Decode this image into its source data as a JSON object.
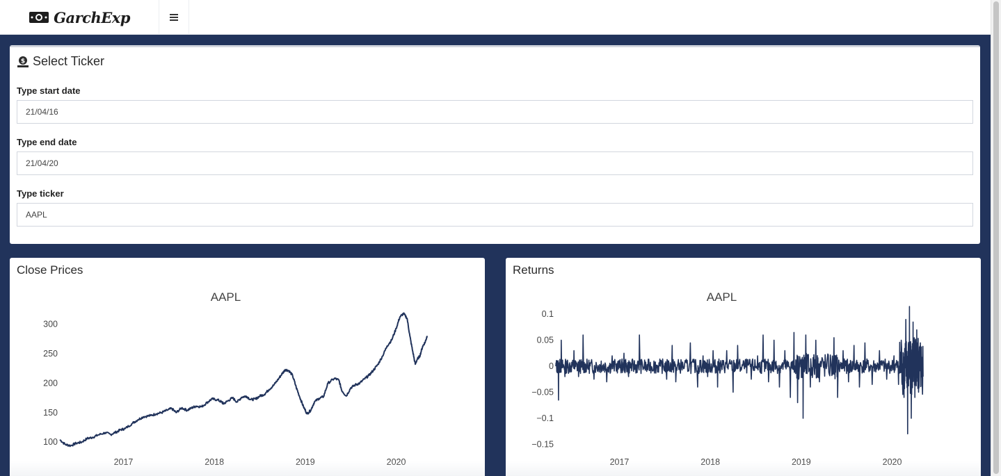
{
  "header": {
    "brand": "GarchExp",
    "logo_icon": "money-bill-icon",
    "menu_icon": "hamburger-menu-icon",
    "menu_glyph": "≡"
  },
  "ticker_box": {
    "icon": "money-check-dollar-icon",
    "title": "Select Ticker",
    "start_label": "Type start date",
    "start_value": "21/04/16",
    "end_label": "Type end date",
    "end_value": "21/04/20",
    "ticker_label": "Type ticker",
    "ticker_value": "AAPL"
  },
  "colors": {
    "frame": "#21335b",
    "line": "#21335b",
    "box_border": "#d2d6de"
  },
  "close_box": {
    "title": "Close Prices"
  },
  "returns_box": {
    "title": "Returns"
  },
  "chart_data": [
    {
      "type": "line",
      "title": "AAPL",
      "xlabel": "",
      "ylabel": "",
      "x_ticks": [
        "2017",
        "2018",
        "2019",
        "2020"
      ],
      "y_ticks": [
        "100",
        "150",
        "200",
        "250",
        "300"
      ],
      "ylim": [
        92,
        330
      ],
      "xlim": [
        2016.3,
        2020.34
      ],
      "grid": false,
      "series": [
        {
          "x": [
            2016.3,
            2016.36,
            2016.42,
            2016.48,
            2016.54,
            2016.6,
            2016.66,
            2016.72,
            2016.8,
            2016.86,
            2016.92,
            2016.97,
            2017.02,
            2017.1,
            2017.16,
            2017.22,
            2017.3,
            2017.36,
            2017.42,
            2017.48,
            2017.53,
            2017.58,
            2017.64,
            2017.7,
            2017.75,
            2017.8,
            2017.86,
            2017.92,
            2017.97,
            2018.03,
            2018.08,
            2018.1,
            2018.15,
            2018.2,
            2018.25,
            2018.3,
            2018.35,
            2018.4,
            2018.45,
            2018.5,
            2018.55,
            2018.6,
            2018.65,
            2018.7,
            2018.74,
            2018.78,
            2018.82,
            2018.86,
            2018.9,
            2018.94,
            2018.98,
            2019.02,
            2019.06,
            2019.1,
            2019.15,
            2019.2,
            2019.25,
            2019.32,
            2019.37,
            2019.4,
            2019.45,
            2019.5,
            2019.55,
            2019.6,
            2019.65,
            2019.7,
            2019.75,
            2019.8,
            2019.85,
            2019.9,
            2019.95,
            2020.0,
            2020.04,
            2020.08,
            2020.12,
            2020.15,
            2020.18,
            2020.21,
            2020.23,
            2020.26,
            2020.29,
            2020.32,
            2020.34
          ],
          "y": [
            104,
            96,
            94,
            98,
            100,
            106,
            108,
            112,
            116,
            113,
            117,
            121,
            123,
            132,
            138,
            143,
            145,
            148,
            150,
            154,
            157,
            150,
            158,
            154,
            158,
            161,
            160,
            167,
            173,
            172,
            168,
            165,
            170,
            175,
            168,
            176,
            178,
            172,
            173,
            178,
            181,
            189,
            196,
            206,
            215,
            223,
            221,
            213,
            193,
            176,
            160,
            148,
            154,
            168,
            174,
            177,
            200,
            208,
            205,
            188,
            178,
            192,
            197,
            200,
            207,
            213,
            222,
            232,
            246,
            263,
            273,
            293,
            312,
            318,
            310,
            280,
            255,
            232,
            240,
            246,
            262,
            270,
            280
          ]
        }
      ]
    },
    {
      "type": "line",
      "title": "AAPL",
      "xlabel": "",
      "ylabel": "",
      "x_ticks": [
        "2017",
        "2018",
        "2019",
        "2020"
      ],
      "y_ticks": [
        "0.1",
        "0.05",
        "0",
        "−0.05",
        "−0.1",
        "−0.15"
      ],
      "ylim": [
        -0.155,
        0.115
      ],
      "xlim": [
        2016.3,
        2020.34
      ],
      "grid": false,
      "series": [
        {
          "x": [
            2016.3,
            2016.33,
            2016.36,
            2016.4,
            2016.45,
            2016.5,
            2016.55,
            2016.6,
            2016.66,
            2016.72,
            2016.8,
            2016.86,
            2016.92,
            2017.0,
            2017.05,
            2017.1,
            2017.16,
            2017.22,
            2017.3,
            2017.38,
            2017.45,
            2017.52,
            2017.58,
            2017.62,
            2017.7,
            2017.78,
            2017.86,
            2017.92,
            2017.97,
            2018.03,
            2018.08,
            2018.12,
            2018.18,
            2018.25,
            2018.3,
            2018.38,
            2018.45,
            2018.52,
            2018.58,
            2018.64,
            2018.7,
            2018.76,
            2018.82,
            2018.88,
            2018.92,
            2018.96,
            2019.0,
            2019.02,
            2019.05,
            2019.1,
            2019.16,
            2019.2,
            2019.28,
            2019.36,
            2019.4,
            2019.46,
            2019.52,
            2019.58,
            2019.64,
            2019.7,
            2019.78,
            2019.86,
            2019.94,
            2020.02,
            2020.07,
            2020.1,
            2020.13,
            2020.15,
            2020.17,
            2020.19,
            2020.21,
            2020.23,
            2020.25,
            2020.27,
            2020.29,
            2020.31,
            2020.34
          ],
          "y": [
            0.0,
            -0.065,
            0.05,
            -0.02,
            0.0,
            0.03,
            -0.02,
            0.06,
            0.0,
            -0.025,
            0.01,
            -0.03,
            0.02,
            0.0,
            0.025,
            -0.02,
            0.0,
            0.06,
            -0.01,
            0.01,
            0.0,
            -0.025,
            0.04,
            -0.03,
            0.0,
            0.045,
            -0.04,
            0.02,
            -0.02,
            0.03,
            -0.04,
            0.0,
            0.03,
            -0.05,
            0.04,
            0.0,
            -0.025,
            0.02,
            0.06,
            -0.03,
            0.05,
            -0.04,
            0.03,
            -0.06,
            0.065,
            -0.07,
            0.0,
            -0.1,
            0.06,
            -0.04,
            0.05,
            -0.03,
            0.0,
            0.055,
            -0.06,
            0.03,
            -0.03,
            0.04,
            -0.04,
            0.045,
            -0.035,
            0.03,
            -0.025,
            0.02,
            -0.035,
            0.05,
            -0.06,
            0.09,
            -0.13,
            0.115,
            -0.1,
            0.085,
            -0.06,
            0.07,
            -0.05,
            0.045,
            -0.02
          ]
        }
      ]
    }
  ]
}
